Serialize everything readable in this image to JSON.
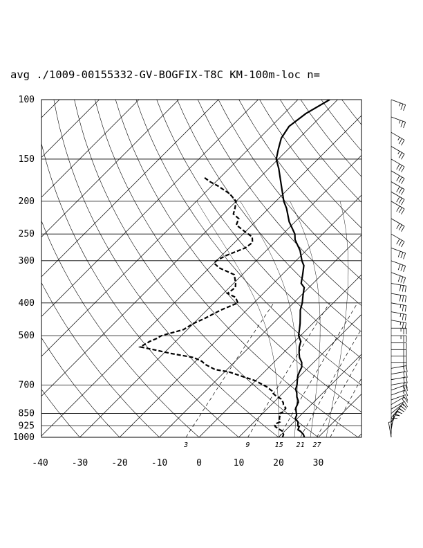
{
  "chart_data": {
    "type": "line",
    "subtype": "skew-T log-P sounding",
    "title": "avg ./1009-00155332-GV-BOGFIX-T8C KM-100m-loc n=",
    "xlabel": "",
    "ylabel": "",
    "x_axis": {
      "ticks": [
        -40,
        -30,
        -20,
        -10,
        0,
        10,
        20,
        30
      ],
      "xlim": [
        -40,
        40
      ],
      "unit": "°C (skewed)"
    },
    "y_axis": {
      "ticks": [
        1000,
        925,
        850,
        700,
        500,
        400,
        300,
        250,
        200,
        150,
        100
      ],
      "ylim": [
        1000,
        100
      ],
      "scale": "log"
    },
    "mixing_ratio_labels": [
      "3",
      "9",
      "15",
      "21",
      "27"
    ],
    "grid": true,
    "series": [
      {
        "key": "temperature",
        "style": "solid",
        "points": [
          [
            1000,
            26.5
          ],
          [
            980,
            25.5
          ],
          [
            960,
            24.0
          ],
          [
            950,
            23.0
          ],
          [
            930,
            22.5
          ],
          [
            925,
            22.0
          ],
          [
            900,
            21.0
          ],
          [
            880,
            19.5
          ],
          [
            860,
            19.0
          ],
          [
            850,
            18.5
          ],
          [
            820,
            17.0
          ],
          [
            800,
            16.5
          ],
          [
            780,
            15.8
          ],
          [
            760,
            14.5
          ],
          [
            740,
            13.5
          ],
          [
            720,
            12.2
          ],
          [
            700,
            11.5
          ],
          [
            680,
            10.5
          ],
          [
            660,
            9.5
          ],
          [
            640,
            8.8
          ],
          [
            620,
            8.2
          ],
          [
            600,
            7.0
          ],
          [
            580,
            5.2
          ],
          [
            560,
            3.8
          ],
          [
            540,
            2.5
          ],
          [
            520,
            1.5
          ],
          [
            500,
            -0.5
          ],
          [
            480,
            -1.8
          ],
          [
            460,
            -3.2
          ],
          [
            440,
            -4.8
          ],
          [
            420,
            -6.5
          ],
          [
            400,
            -7.8
          ],
          [
            380,
            -9.5
          ],
          [
            360,
            -11.2
          ],
          [
            350,
            -13.0
          ],
          [
            330,
            -14.8
          ],
          [
            310,
            -16.8
          ],
          [
            300,
            -18.5
          ],
          [
            280,
            -21.5
          ],
          [
            260,
            -25.5
          ],
          [
            250,
            -27.0
          ],
          [
            230,
            -31.5
          ],
          [
            210,
            -35.5
          ],
          [
            200,
            -38.0
          ],
          [
            180,
            -42.5
          ],
          [
            160,
            -47.5
          ],
          [
            150,
            -50.5
          ],
          [
            140,
            -52.5
          ],
          [
            130,
            -54.5
          ],
          [
            120,
            -55.5
          ],
          [
            110,
            -54.5
          ],
          [
            100,
            -52.0
          ]
        ]
      },
      {
        "key": "dewpoint",
        "style": "dashed",
        "points": [
          [
            1000,
            21.0
          ],
          [
            980,
            20.5
          ],
          [
            960,
            19.5
          ],
          [
            950,
            18.5
          ],
          [
            940,
            17.5
          ],
          [
            930,
            16.5
          ],
          [
            920,
            16.0
          ],
          [
            910,
            16.0
          ],
          [
            900,
            16.5
          ],
          [
            890,
            16.0
          ],
          [
            880,
            15.5
          ],
          [
            860,
            14.8
          ],
          [
            850,
            14.3
          ],
          [
            840,
            14.8
          ],
          [
            820,
            14.5
          ],
          [
            800,
            13.0
          ],
          [
            790,
            12.5
          ],
          [
            770,
            11.0
          ],
          [
            750,
            8.5
          ],
          [
            740,
            7.5
          ],
          [
            730,
            6.8
          ],
          [
            710,
            4.5
          ],
          [
            690,
            1.5
          ],
          [
            680,
            0.0
          ],
          [
            660,
            -4.5
          ],
          [
            640,
            -9.0
          ],
          [
            630,
            -13.0
          ],
          [
            610,
            -16.5
          ],
          [
            595,
            -18.5
          ],
          [
            580,
            -21.5
          ],
          [
            565,
            -28.0
          ],
          [
            550,
            -33.5
          ],
          [
            540,
            -37.5
          ],
          [
            520,
            -36.5
          ],
          [
            510,
            -35.5
          ],
          [
            500,
            -35.0
          ],
          [
            480,
            -31.0
          ],
          [
            460,
            -30.0
          ],
          [
            445,
            -28.5
          ],
          [
            420,
            -26.5
          ],
          [
            400,
            -24.0
          ],
          [
            385,
            -26.0
          ],
          [
            375,
            -29.0
          ],
          [
            360,
            -28.5
          ],
          [
            350,
            -29.5
          ],
          [
            330,
            -32.0
          ],
          [
            315,
            -37.5
          ],
          [
            305,
            -40.0
          ],
          [
            300,
            -40.0
          ],
          [
            290,
            -39.0
          ],
          [
            275,
            -36.0
          ],
          [
            265,
            -35.5
          ],
          [
            255,
            -37.0
          ],
          [
            245,
            -40.5
          ],
          [
            235,
            -44.0
          ],
          [
            225,
            -45.0
          ],
          [
            218,
            -47.5
          ],
          [
            210,
            -48.5
          ],
          [
            200,
            -50.0
          ],
          [
            190,
            -53.5
          ],
          [
            180,
            -58.5
          ],
          [
            175,
            -61.5
          ],
          [
            170,
            -64.0
          ]
        ]
      }
    ],
    "wind_barbs": {
      "present": true,
      "location": "right of plot",
      "unit": "",
      "barbs": [
        [
          1000,
          170,
          5
        ],
        [
          975,
          180,
          10
        ],
        [
          950,
          190,
          10
        ],
        [
          925,
          200,
          15
        ],
        [
          900,
          210,
          15
        ],
        [
          875,
          220,
          15
        ],
        [
          850,
          230,
          15
        ],
        [
          825,
          240,
          15
        ],
        [
          800,
          240,
          15
        ],
        [
          775,
          250,
          15
        ],
        [
          750,
          250,
          15
        ],
        [
          725,
          250,
          20
        ],
        [
          700,
          260,
          20
        ],
        [
          675,
          260,
          20
        ],
        [
          650,
          260,
          20
        ],
        [
          625,
          260,
          20
        ],
        [
          600,
          270,
          20
        ],
        [
          575,
          270,
          20
        ],
        [
          550,
          270,
          20
        ],
        [
          525,
          270,
          20
        ],
        [
          500,
          270,
          25
        ],
        [
          475,
          270,
          25
        ],
        [
          450,
          280,
          25
        ],
        [
          425,
          280,
          25
        ],
        [
          400,
          280,
          25
        ],
        [
          375,
          280,
          30
        ],
        [
          350,
          280,
          30
        ],
        [
          325,
          290,
          30
        ],
        [
          300,
          290,
          30
        ],
        [
          275,
          290,
          30
        ],
        [
          250,
          300,
          30
        ],
        [
          225,
          300,
          30
        ],
        [
          200,
          300,
          30
        ],
        [
          187.5,
          300,
          30
        ],
        [
          175,
          300,
          30
        ],
        [
          162.5,
          300,
          30
        ],
        [
          150,
          300,
          30
        ],
        [
          137.5,
          300,
          25
        ],
        [
          125,
          300,
          25
        ],
        [
          112.5,
          290,
          25
        ],
        [
          100,
          290,
          25
        ]
      ]
    }
  }
}
